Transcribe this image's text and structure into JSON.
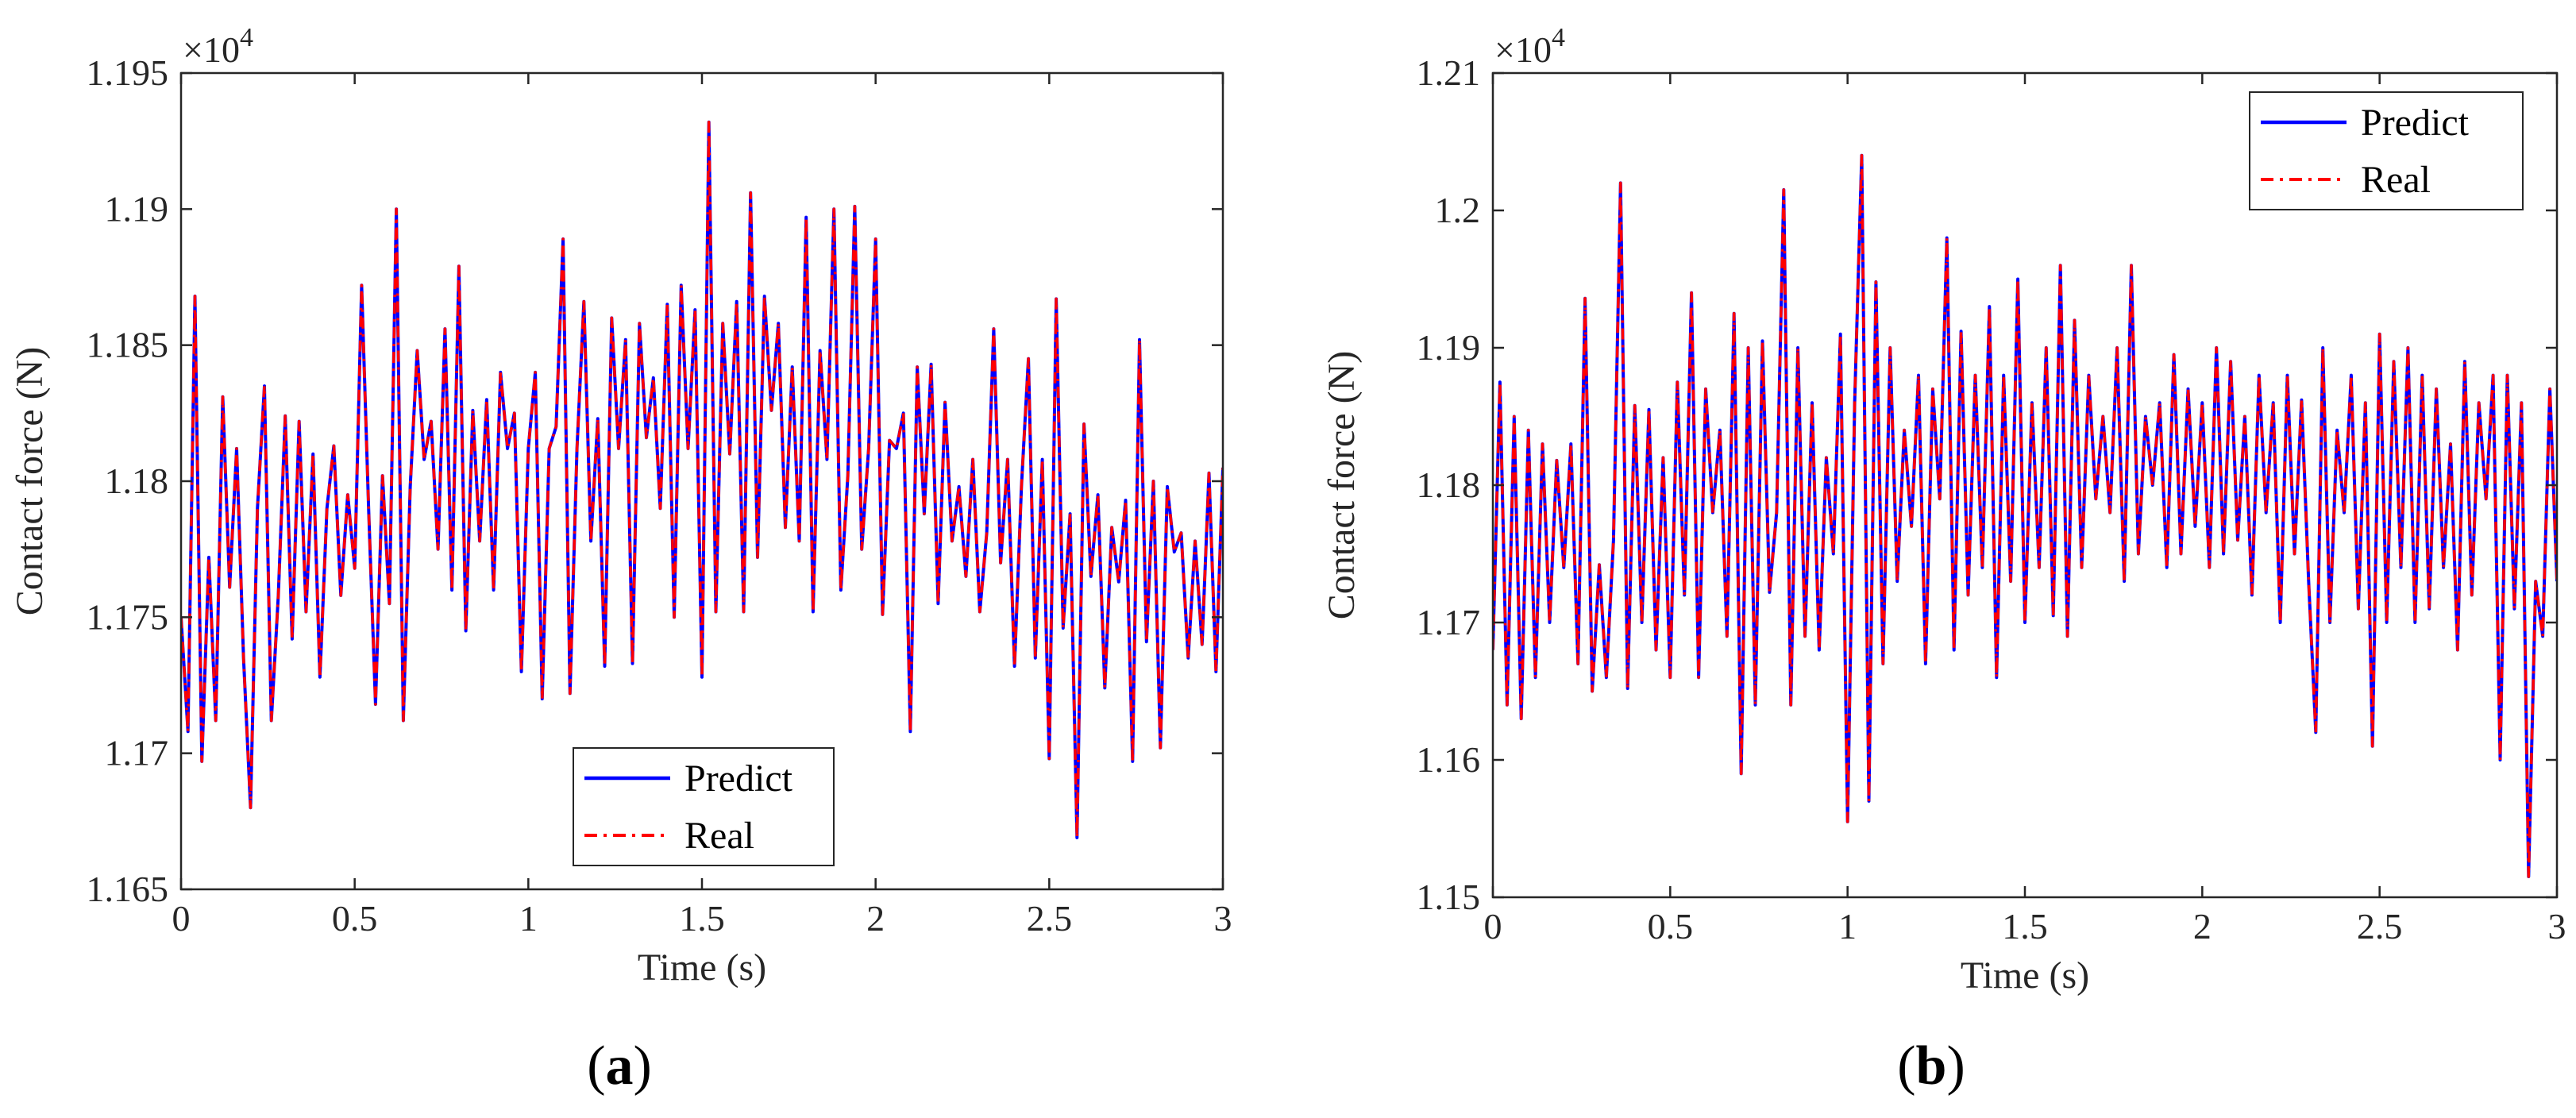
{
  "chart_data": [
    {
      "type": "line",
      "caption_letter": "a",
      "caption_open": "(",
      "caption_close": ")",
      "xlabel": "Time (s)",
      "ylabel": "Contact force (N)",
      "exponent_base": "×10",
      "exponent_power": "4",
      "xlim": [
        0,
        3
      ],
      "ylim": [
        1.165,
        1.195
      ],
      "xticks": [
        "0",
        "0.5",
        "1",
        "1.5",
        "2",
        "2.5",
        "3"
      ],
      "yticks": [
        "1.165",
        "1.17",
        "1.175",
        "1.18",
        "1.185",
        "1.19",
        "1.195"
      ],
      "legend_position": "bottom-center",
      "series": [
        {
          "name": "Predict",
          "color": "#0000ff",
          "style": "solid"
        },
        {
          "name": "Real",
          "color": "#ff0000",
          "style": "dash-dot"
        }
      ],
      "x": [
        0.0,
        0.02,
        0.04,
        0.06,
        0.08,
        0.1,
        0.12,
        0.14,
        0.16,
        0.18,
        0.2,
        0.22,
        0.24,
        0.26,
        0.28,
        0.3,
        0.32,
        0.34,
        0.36,
        0.38,
        0.4,
        0.42,
        0.44,
        0.46,
        0.48,
        0.5,
        0.52,
        0.54,
        0.56,
        0.58,
        0.6,
        0.62,
        0.64,
        0.66,
        0.68,
        0.7,
        0.72,
        0.74,
        0.76,
        0.78,
        0.8,
        0.82,
        0.84,
        0.86,
        0.88,
        0.9,
        0.92,
        0.94,
        0.96,
        0.98,
        1.0,
        1.02,
        1.04,
        1.06,
        1.08,
        1.1,
        1.12,
        1.14,
        1.16,
        1.18,
        1.2,
        1.22,
        1.24,
        1.26,
        1.28,
        1.3,
        1.32,
        1.34,
        1.36,
        1.38,
        1.4,
        1.42,
        1.44,
        1.46,
        1.48,
        1.5,
        1.52,
        1.54,
        1.56,
        1.58,
        1.6,
        1.62,
        1.64,
        1.66,
        1.68,
        1.7,
        1.72,
        1.74,
        1.76,
        1.78,
        1.8,
        1.82,
        1.84,
        1.86,
        1.88,
        1.9,
        1.92,
        1.94,
        1.96,
        1.98,
        2.0,
        2.02,
        2.04,
        2.06,
        2.08,
        2.1,
        2.12,
        2.14,
        2.16,
        2.18,
        2.2,
        2.22,
        2.24,
        2.26,
        2.28,
        2.3,
        2.32,
        2.34,
        2.36,
        2.38,
        2.4,
        2.42,
        2.44,
        2.46,
        2.48,
        2.5,
        2.52,
        2.54,
        2.56,
        2.58,
        2.6,
        2.62,
        2.64,
        2.66,
        2.68,
        2.7,
        2.72,
        2.74,
        2.76,
        2.78,
        2.8,
        2.82,
        2.84,
        2.86,
        2.88,
        2.9,
        2.92,
        2.94,
        2.96,
        2.98,
        3.0
      ],
      "y": [
        1.175,
        1.1708,
        1.1868,
        1.1697,
        1.1772,
        1.1712,
        1.1831,
        1.1761,
        1.1812,
        1.1735,
        1.168,
        1.179,
        1.1835,
        1.1712,
        1.1758,
        1.1824,
        1.1742,
        1.1822,
        1.1752,
        1.181,
        1.1728,
        1.179,
        1.1813,
        1.1758,
        1.1795,
        1.1768,
        1.1872,
        1.179,
        1.1718,
        1.1802,
        1.1755,
        1.19,
        1.1712,
        1.1798,
        1.1848,
        1.1808,
        1.1822,
        1.1775,
        1.1856,
        1.176,
        1.1879,
        1.1745,
        1.1826,
        1.1778,
        1.183,
        1.176,
        1.184,
        1.1812,
        1.1825,
        1.173,
        1.1812,
        1.184,
        1.172,
        1.1812,
        1.182,
        1.1889,
        1.1722,
        1.1812,
        1.1866,
        1.1778,
        1.1823,
        1.1732,
        1.186,
        1.1812,
        1.1852,
        1.1733,
        1.1858,
        1.1816,
        1.1838,
        1.179,
        1.1865,
        1.175,
        1.1872,
        1.1812,
        1.1863,
        1.1728,
        1.1932,
        1.1752,
        1.1858,
        1.181,
        1.1866,
        1.1752,
        1.1906,
        1.1772,
        1.1868,
        1.1826,
        1.1858,
        1.1783,
        1.1842,
        1.1778,
        1.1897,
        1.1752,
        1.1848,
        1.1808,
        1.19,
        1.176,
        1.1802,
        1.1901,
        1.1775,
        1.1812,
        1.1889,
        1.1751,
        1.1815,
        1.1812,
        1.1825,
        1.1708,
        1.1842,
        1.1788,
        1.1843,
        1.1755,
        1.1829,
        1.1778,
        1.1798,
        1.1765,
        1.1808,
        1.1752,
        1.1781,
        1.1856,
        1.177,
        1.1808,
        1.1732,
        1.1798,
        1.1845,
        1.1735,
        1.1808,
        1.1698,
        1.1867,
        1.1746,
        1.1788,
        1.1669,
        1.1821,
        1.1765,
        1.1795,
        1.1724,
        1.1783,
        1.1763,
        1.1793,
        1.1697,
        1.1852,
        1.1741,
        1.18,
        1.1702,
        1.1798,
        1.1774,
        1.1781,
        1.1735,
        1.1778,
        1.174,
        1.1803,
        1.173,
        1.1805
      ]
    },
    {
      "type": "line",
      "caption_letter": "b",
      "caption_open": "(",
      "caption_close": ")",
      "xlabel": "Time (s)",
      "ylabel": "Contact force (N)",
      "exponent_base": "×10",
      "exponent_power": "4",
      "xlim": [
        0,
        3
      ],
      "ylim": [
        1.15,
        1.21
      ],
      "xticks": [
        "0",
        "0.5",
        "1",
        "1.5",
        "2",
        "2.5",
        "3"
      ],
      "yticks": [
        "1.15",
        "1.16",
        "1.17",
        "1.18",
        "1.19",
        "1.2",
        "1.21"
      ],
      "legend_position": "top-right",
      "series": [
        {
          "name": "Predict",
          "color": "#0000ff",
          "style": "solid"
        },
        {
          "name": "Real",
          "color": "#ff0000",
          "style": "dash-dot"
        }
      ],
      "x": [
        0.0,
        0.02,
        0.04,
        0.06,
        0.08,
        0.1,
        0.12,
        0.14,
        0.16,
        0.18,
        0.2,
        0.22,
        0.24,
        0.26,
        0.28,
        0.3,
        0.32,
        0.34,
        0.36,
        0.38,
        0.4,
        0.42,
        0.44,
        0.46,
        0.48,
        0.5,
        0.52,
        0.54,
        0.56,
        0.58,
        0.6,
        0.62,
        0.64,
        0.66,
        0.68,
        0.7,
        0.72,
        0.74,
        0.76,
        0.78,
        0.8,
        0.82,
        0.84,
        0.86,
        0.88,
        0.9,
        0.92,
        0.94,
        0.96,
        0.98,
        1.0,
        1.02,
        1.04,
        1.06,
        1.08,
        1.1,
        1.12,
        1.14,
        1.16,
        1.18,
        1.2,
        1.22,
        1.24,
        1.26,
        1.28,
        1.3,
        1.32,
        1.34,
        1.36,
        1.38,
        1.4,
        1.42,
        1.44,
        1.46,
        1.48,
        1.5,
        1.52,
        1.54,
        1.56,
        1.58,
        1.6,
        1.62,
        1.64,
        1.66,
        1.68,
        1.7,
        1.72,
        1.74,
        1.76,
        1.78,
        1.8,
        1.82,
        1.84,
        1.86,
        1.88,
        1.9,
        1.92,
        1.94,
        1.96,
        1.98,
        2.0,
        2.02,
        2.04,
        2.06,
        2.08,
        2.1,
        2.12,
        2.14,
        2.16,
        2.18,
        2.2,
        2.22,
        2.24,
        2.26,
        2.28,
        2.3,
        2.32,
        2.34,
        2.36,
        2.38,
        2.4,
        2.42,
        2.44,
        2.46,
        2.48,
        2.5,
        2.52,
        2.54,
        2.56,
        2.58,
        2.6,
        2.62,
        2.64,
        2.66,
        2.68,
        2.7,
        2.72,
        2.74,
        2.76,
        2.78,
        2.8,
        2.82,
        2.84,
        2.86,
        2.88,
        2.9,
        2.92,
        2.94,
        2.96,
        2.98,
        3.0
      ],
      "y": [
        1.168,
        1.1875,
        1.164,
        1.185,
        1.163,
        1.184,
        1.166,
        1.183,
        1.17,
        1.1818,
        1.174,
        1.183,
        1.167,
        1.1936,
        1.165,
        1.1742,
        1.166,
        1.176,
        1.202,
        1.1652,
        1.1858,
        1.17,
        1.1855,
        1.168,
        1.182,
        1.166,
        1.1875,
        1.172,
        1.194,
        1.166,
        1.187,
        1.178,
        1.184,
        1.169,
        1.1925,
        1.159,
        1.19,
        1.164,
        1.1905,
        1.1722,
        1.178,
        1.2015,
        1.164,
        1.19,
        1.169,
        1.186,
        1.168,
        1.182,
        1.175,
        1.191,
        1.1555,
        1.186,
        1.204,
        1.157,
        1.1948,
        1.167,
        1.19,
        1.173,
        1.184,
        1.177,
        1.188,
        1.167,
        1.187,
        1.179,
        1.198,
        1.168,
        1.1912,
        1.172,
        1.188,
        1.174,
        1.193,
        1.166,
        1.188,
        1.173,
        1.195,
        1.17,
        1.186,
        1.174,
        1.19,
        1.1705,
        1.196,
        1.169,
        1.192,
        1.174,
        1.188,
        1.179,
        1.185,
        1.178,
        1.19,
        1.173,
        1.196,
        1.175,
        1.185,
        1.18,
        1.186,
        1.174,
        1.1895,
        1.175,
        1.187,
        1.177,
        1.186,
        1.174,
        1.19,
        1.175,
        1.189,
        1.176,
        1.185,
        1.172,
        1.188,
        1.178,
        1.186,
        1.17,
        1.188,
        1.175,
        1.1862,
        1.173,
        1.162,
        1.19,
        1.17,
        1.184,
        1.178,
        1.188,
        1.171,
        1.186,
        1.161,
        1.191,
        1.17,
        1.189,
        1.174,
        1.19,
        1.17,
        1.188,
        1.171,
        1.187,
        1.174,
        1.183,
        1.168,
        1.189,
        1.172,
        1.186,
        1.179,
        1.188,
        1.16,
        1.188,
        1.171,
        1.186,
        1.1515,
        1.173,
        1.169,
        1.187,
        1.173
      ]
    }
  ]
}
